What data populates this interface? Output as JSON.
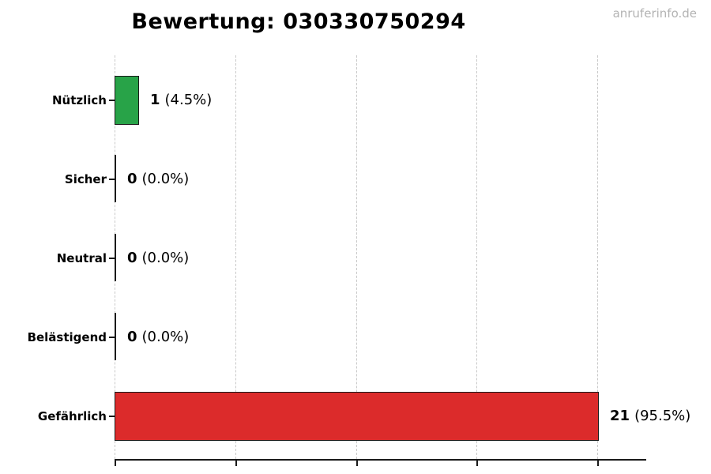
{
  "page": {
    "watermark": "anruferinfo.de"
  },
  "chart_data": {
    "type": "bar",
    "orientation": "horizontal",
    "title": "Bewertung: 030330750294",
    "categories": [
      "Nützlich",
      "Sicher",
      "Neutral",
      "Belästigend",
      "Gefährlich"
    ],
    "values": [
      1,
      0,
      0,
      0,
      21
    ],
    "percent_labels": [
      "4.5%",
      "0.0%",
      "0.0%",
      "0.0%",
      "95.5%"
    ],
    "rows": [
      {
        "label": "Nützlich",
        "value": 1,
        "value_text": "1",
        "percent_text": "(4.5%)",
        "color": "#28a348"
      },
      {
        "label": "Sicher",
        "value": 0,
        "value_text": "0",
        "percent_text": "(0.0%)",
        "color": "#1a1a1a"
      },
      {
        "label": "Neutral",
        "value": 0,
        "value_text": "0",
        "percent_text": "(0.0%)",
        "color": "#1a1a1a"
      },
      {
        "label": "Belästigend",
        "value": 0,
        "value_text": "0",
        "percent_text": "(0.0%)",
        "color": "#1a1a1a"
      },
      {
        "label": "Gefährlich",
        "value": 21,
        "value_text": "21",
        "percent_text": "(95.5%)",
        "color": "#dc2b2b"
      }
    ],
    "xlim": [
      0,
      21
    ],
    "gridlines_x": [
      0,
      5.25,
      10.5,
      15.75,
      21
    ],
    "grid_style": "dashed-vertical",
    "legend": "none",
    "xlabel": "",
    "ylabel": "",
    "colors": {
      "positive_bar": "#28a348",
      "danger_bar": "#dc2b2b",
      "bar_border": "#1a1a1a",
      "gridline": "#c9c9c9",
      "watermark_text": "#b3b3b3",
      "text": "#000000"
    }
  }
}
